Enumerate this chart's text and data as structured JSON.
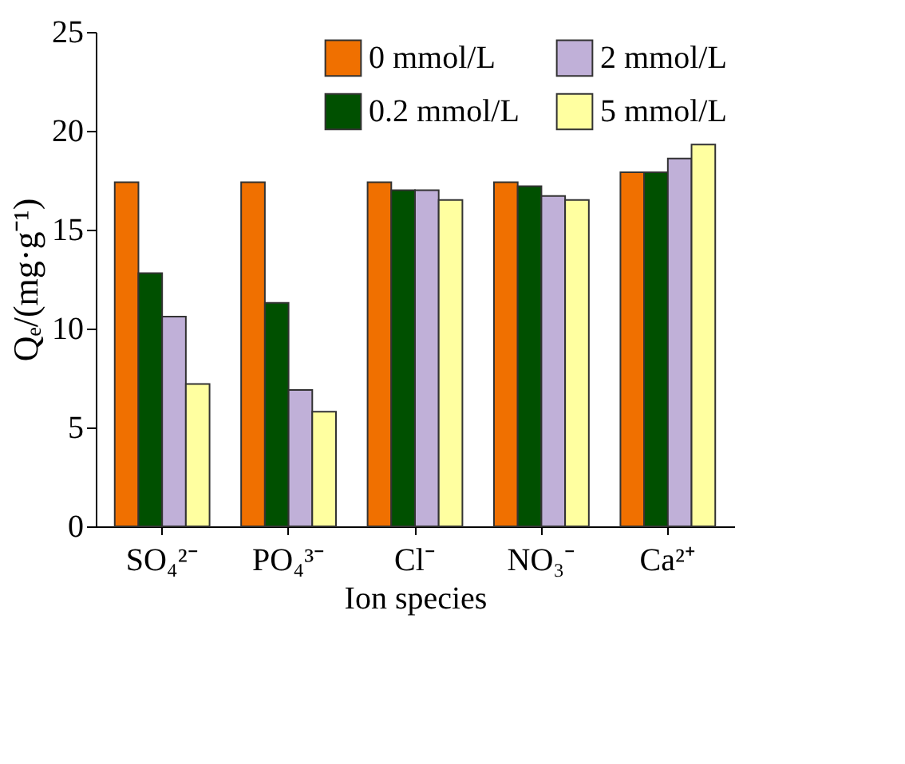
{
  "chart_data": {
    "type": "bar",
    "xlabel": "Ion species",
    "ylabel": "Qₑ/(mg·g⁻¹)",
    "categories": [
      "SO₄²⁻",
      "PO₄³⁻",
      "Cl⁻",
      "NO₃⁻",
      "Ca²⁺"
    ],
    "series": [
      {
        "name": "0 mmol/L",
        "color": "#f07000",
        "values": [
          17.4,
          17.4,
          17.4,
          17.4,
          17.9
        ]
      },
      {
        "name": "0.2 mmol/L",
        "color": "#005000",
        "values": [
          12.8,
          11.3,
          17.0,
          17.2,
          17.9
        ]
      },
      {
        "name": "2 mmol/L",
        "color": "#c0b0d8",
        "values": [
          10.6,
          6.9,
          17.0,
          16.7,
          18.6
        ]
      },
      {
        "name": "5 mmol/L",
        "color": "#ffffa0",
        "values": [
          7.2,
          5.8,
          16.5,
          16.5,
          19.3
        ]
      }
    ],
    "ylim": [
      0,
      25
    ],
    "yticks": [
      0,
      5,
      10,
      15,
      20,
      25
    ],
    "grid": false,
    "legend": "top right"
  }
}
